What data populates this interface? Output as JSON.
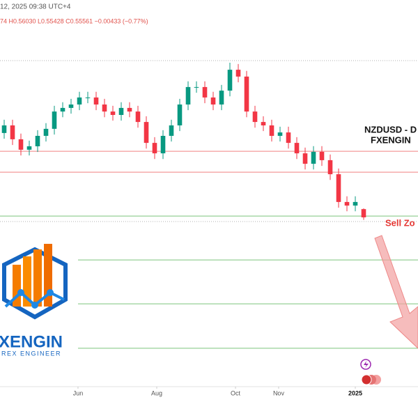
{
  "chart_data": {
    "type": "candlestick",
    "header": "12, 2025 09:38 UTC+4",
    "quote": "74  H0.56030  L0.55428  C0.55561  −0.00433 (−0.77%)",
    "title": "NZDUSD - D",
    "subtitle": "FXENGIN",
    "annotation": "Sell Zo",
    "logo_name": "XENGIN",
    "logo_tagline": "REX ENGINEER",
    "up_color": "#089981",
    "down_color": "#f23645",
    "x": [
      0,
      1,
      2,
      3,
      4,
      5,
      6,
      7,
      8,
      9,
      10,
      11,
      12,
      13,
      14,
      15,
      16,
      17,
      18,
      19,
      20,
      21,
      22,
      23,
      24,
      25,
      26,
      27,
      28,
      29,
      30,
      31,
      32,
      33,
      34,
      35,
      36,
      37,
      38,
      39,
      40,
      41,
      42,
      43
    ],
    "open": [
      0.6,
      0.604,
      0.5967,
      0.5912,
      0.593,
      0.5985,
      0.6022,
      0.6113,
      0.6132,
      0.615,
      0.6187,
      0.6187,
      0.615,
      0.6113,
      0.6095,
      0.6132,
      0.6113,
      0.6058,
      0.5948,
      0.5893,
      0.5985,
      0.604,
      0.615,
      0.6242,
      0.6242,
      0.6187,
      0.615,
      0.6223,
      0.6333,
      0.6297,
      0.6113,
      0.6058,
      0.604,
      0.5985,
      0.6003,
      0.5948,
      0.5893,
      0.5838,
      0.5901,
      0.5857,
      0.5783,
      0.5637,
      0.5618,
      0.55994
    ],
    "high": [
      0.607,
      0.607,
      0.5997,
      0.596,
      0.6015,
      0.6052,
      0.6143,
      0.6162,
      0.618,
      0.6217,
      0.6217,
      0.6217,
      0.618,
      0.6143,
      0.6162,
      0.6162,
      0.6143,
      0.6088,
      0.5978,
      0.6015,
      0.607,
      0.618,
      0.6272,
      0.6272,
      0.6272,
      0.6217,
      0.6253,
      0.637,
      0.6363,
      0.6327,
      0.6143,
      0.6088,
      0.607,
      0.6033,
      0.6033,
      0.5978,
      0.5923,
      0.5931,
      0.5931,
      0.5887,
      0.5813,
      0.5667,
      0.5667,
      0.5603
    ],
    "low": [
      0.597,
      0.5937,
      0.5882,
      0.5882,
      0.59,
      0.5955,
      0.5992,
      0.6083,
      0.6102,
      0.612,
      0.6157,
      0.612,
      0.6083,
      0.6065,
      0.6065,
      0.6083,
      0.6028,
      0.5918,
      0.5863,
      0.5863,
      0.5955,
      0.601,
      0.612,
      0.6212,
      0.6157,
      0.612,
      0.612,
      0.6193,
      0.6267,
      0.6083,
      0.6028,
      0.601,
      0.5955,
      0.5955,
      0.5918,
      0.5863,
      0.5808,
      0.5808,
      0.5827,
      0.5753,
      0.5607,
      0.5588,
      0.5588,
      0.55428
    ],
    "close": [
      0.604,
      0.5967,
      0.5912,
      0.593,
      0.5985,
      0.6022,
      0.6113,
      0.6132,
      0.615,
      0.6187,
      0.6187,
      0.615,
      0.6113,
      0.6095,
      0.6132,
      0.6113,
      0.6058,
      0.5948,
      0.5893,
      0.5985,
      0.604,
      0.615,
      0.6242,
      0.6242,
      0.6187,
      0.615,
      0.6223,
      0.6333,
      0.6297,
      0.6113,
      0.6058,
      0.604,
      0.5985,
      0.6003,
      0.5948,
      0.5893,
      0.5838,
      0.5901,
      0.5857,
      0.5783,
      0.5637,
      0.5618,
      0.5637,
      0.55561
    ],
    "levels": [
      {
        "value": 0.6381,
        "color": "#b0b0b0",
        "dashed": true
      },
      {
        "value": 0.5904,
        "color": "#f08080",
        "dashed": false
      },
      {
        "value": 0.5794,
        "color": "#f08080",
        "dashed": false
      },
      {
        "value": 0.5563,
        "color": "#7cc47c",
        "dashed": false
      },
      {
        "value": 0.5534,
        "color": "#b0b0b0",
        "dashed": true
      },
      {
        "value": 0.5332,
        "color": "#7cc47c",
        "dashed": false
      },
      {
        "value": 0.5101,
        "color": "#7cc47c",
        "dashed": false
      },
      {
        "value": 0.4867,
        "color": "#7cc47c",
        "dashed": false
      }
    ],
    "xlim": [
      -0.5,
      49.5
    ],
    "ylim": [
      0.45,
      0.67
    ],
    "xticks": [
      {
        "value": 8.83,
        "label": "Jun"
      },
      {
        "value": 18.25,
        "label": "Aug"
      },
      {
        "value": 27.67,
        "label": "Oct"
      },
      {
        "value": 32.83,
        "label": "Nov"
      },
      {
        "value": 42,
        "label": "2025"
      }
    ]
  }
}
